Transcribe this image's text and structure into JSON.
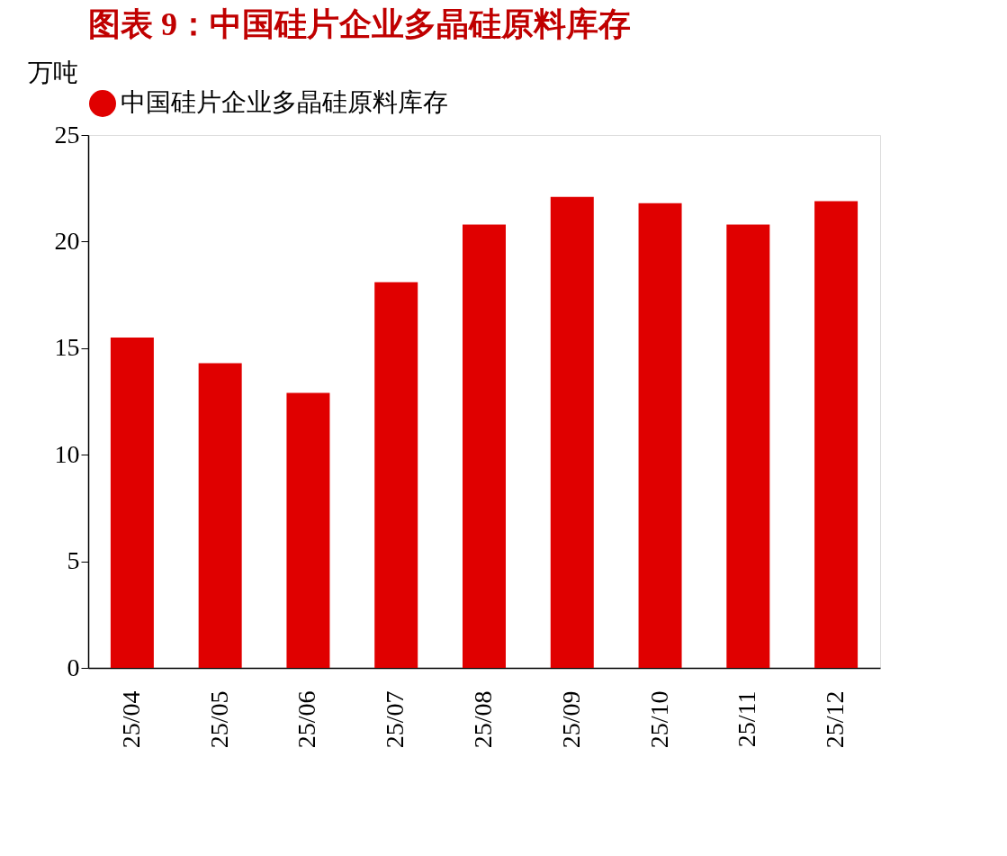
{
  "chart_data": {
    "type": "bar",
    "title": "图表 9：中国硅片企业多晶硅原料库存",
    "ylabel": "万吨",
    "categories": [
      "25/04",
      "25/05",
      "25/06",
      "25/07",
      "25/08",
      "25/09",
      "25/10",
      "25/11",
      "25/12"
    ],
    "series": [
      {
        "name": "中国硅片企业多晶硅原料库存",
        "color": "#e00000",
        "values": [
          15.5,
          14.3,
          12.9,
          18.1,
          20.8,
          22.1,
          21.8,
          20.8,
          21.9
        ]
      }
    ],
    "ylim": [
      0,
      25
    ],
    "yticks": [
      0,
      5,
      10,
      15,
      20,
      25
    ],
    "grid": false,
    "legend": "top"
  }
}
